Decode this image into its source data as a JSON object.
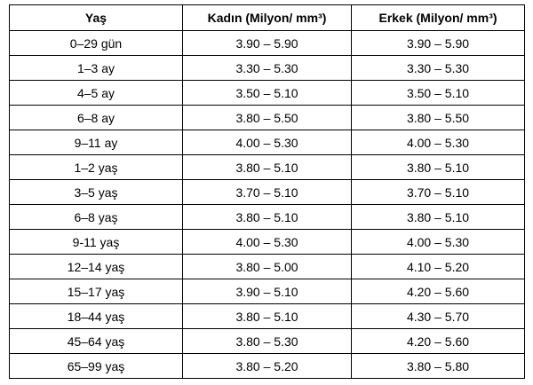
{
  "table": {
    "header": [
      "Yaş",
      "Kadın (Milyon/ mm³)",
      "Erkek (Milyon/ mm³)"
    ],
    "rows": [
      [
        "0–29 gün",
        "3.90 – 5.90",
        "3.90 – 5.90"
      ],
      [
        "1–3 ay",
        "3.30 – 5.30",
        "3.30 – 5.30"
      ],
      [
        "4–5 ay",
        "3.50 – 5.10",
        "3.50 – 5.10"
      ],
      [
        "6–8 ay",
        "3.80 – 5.50",
        "3.80 – 5.50"
      ],
      [
        "9–11 ay",
        "4.00 – 5.30",
        "4.00 – 5.30"
      ],
      [
        "1–2 yaş",
        "3.80 – 5.10",
        "3.80 – 5.10"
      ],
      [
        "3–5 yaş",
        "3.70 – 5.10",
        "3.70 – 5.10"
      ],
      [
        "6–8 yaş",
        "3.80 – 5.10",
        "3.80 – 5.10"
      ],
      [
        "9-11 yaş",
        "4.00 – 5.30",
        "4.00 – 5.30"
      ],
      [
        "12–14 yaş",
        "3.80 – 5.00",
        "4.10 – 5.20"
      ],
      [
        "15–17 yaş",
        "3.90 – 5.10",
        "4.20 – 5.60"
      ],
      [
        "18–44 yaş",
        "3.80 – 5.10",
        "4.30 – 5.70"
      ],
      [
        "45–64 yaş",
        "3.80 – 5.30",
        "4.20 – 5.60"
      ],
      [
        "65–99 yaş",
        "3.80 – 5.20",
        "3.80 – 5.80"
      ]
    ]
  }
}
